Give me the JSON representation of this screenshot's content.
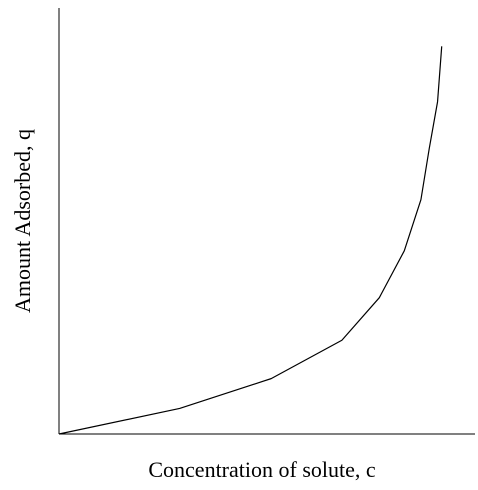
{
  "chart_data": {
    "type": "line",
    "xlabel": "Concentration of solute, c",
    "ylabel": "Amount Adsorbed, q",
    "x": [
      0,
      0.29,
      0.51,
      0.68,
      0.77,
      0.83,
      0.87,
      0.89,
      0.91,
      0.92
    ],
    "series": [
      {
        "color": "#000000",
        "values": [
          0,
          0.06,
          0.13,
          0.22,
          0.32,
          0.43,
          0.55,
          0.67,
          0.78,
          0.91
        ]
      }
    ],
    "xlim": [
      0,
      1
    ],
    "ylim": [
      0,
      1
    ]
  }
}
